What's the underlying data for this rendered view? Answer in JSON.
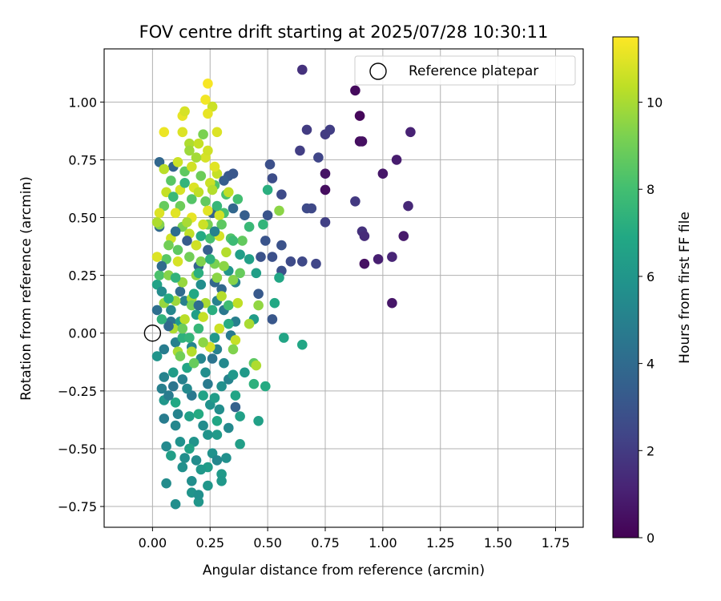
{
  "chart_data": {
    "type": "scatter",
    "title": "FOV centre drift starting at 2025/07/28 10:30:11",
    "xlabel": "Angular distance from reference (arcmin)",
    "ylabel": "Rotation from reference (arcmin)",
    "xlim": [
      -0.21,
      1.87
    ],
    "ylim": [
      -0.84,
      1.23
    ],
    "xticks": [
      "0.00",
      "0.25",
      "0.50",
      "0.75",
      "1.00",
      "1.25",
      "1.50",
      "1.75"
    ],
    "yticks": [
      "-0.75",
      "-0.50",
      "-0.25",
      "0.00",
      "0.25",
      "0.50",
      "0.75",
      "1.00"
    ],
    "grid": true,
    "legend": {
      "placement": "top-right",
      "entries": [
        "Reference platepar"
      ]
    },
    "reference_point": {
      "x": 0.0,
      "y": 0.0
    },
    "colorbar": {
      "label": "Hours from first FF file",
      "min": 0,
      "max": 11.5,
      "ticks": [
        "0",
        "2",
        "4",
        "6",
        "8",
        "10"
      ],
      "colormap": "viridis"
    },
    "points": [
      [
        0.65,
        1.14,
        1.6
      ],
      [
        0.88,
        1.05,
        0.3
      ],
      [
        0.9,
        0.94,
        0.2
      ],
      [
        0.67,
        0.88,
        2.0
      ],
      [
        0.77,
        0.88,
        2.1
      ],
      [
        0.75,
        0.86,
        2.0
      ],
      [
        0.9,
        0.83,
        0.4
      ],
      [
        0.91,
        0.83,
        0.5
      ],
      [
        1.12,
        0.87,
        1.1
      ],
      [
        0.64,
        0.79,
        2.1
      ],
      [
        0.72,
        0.76,
        2.4
      ],
      [
        1.06,
        0.75,
        0.9
      ],
      [
        0.51,
        0.73,
        2.8
      ],
      [
        0.75,
        0.69,
        0.6
      ],
      [
        1.0,
        0.69,
        0.7
      ],
      [
        0.52,
        0.67,
        2.7
      ],
      [
        0.75,
        0.62,
        0.4
      ],
      [
        0.56,
        0.6,
        2.6
      ],
      [
        0.88,
        0.57,
        1.9
      ],
      [
        1.11,
        0.55,
        1.3
      ],
      [
        0.67,
        0.54,
        2.6
      ],
      [
        0.69,
        0.54,
        2.5
      ],
      [
        0.5,
        0.51,
        3.0
      ],
      [
        0.75,
        0.48,
        2.2
      ],
      [
        0.91,
        0.44,
        1.6
      ],
      [
        0.92,
        0.42,
        1.4
      ],
      [
        1.09,
        0.42,
        0.8
      ],
      [
        0.49,
        0.4,
        3.0
      ],
      [
        0.56,
        0.38,
        2.9
      ],
      [
        0.47,
        0.33,
        2.9
      ],
      [
        0.52,
        0.33,
        2.8
      ],
      [
        0.98,
        0.32,
        1.0
      ],
      [
        1.04,
        0.33,
        1.2
      ],
      [
        0.6,
        0.31,
        2.6
      ],
      [
        0.65,
        0.31,
        2.5
      ],
      [
        0.71,
        0.3,
        2.4
      ],
      [
        0.92,
        0.3,
        0.5
      ],
      [
        0.56,
        0.27,
        2.8
      ],
      [
        1.04,
        0.13,
        0.7
      ],
      [
        0.52,
        0.06,
        3.1
      ],
      [
        0.03,
        0.74,
        3.8
      ],
      [
        0.09,
        0.72,
        3.7
      ],
      [
        0.03,
        0.46,
        3.9
      ],
      [
        0.33,
        0.68,
        3.2
      ],
      [
        0.35,
        0.69,
        3.1
      ],
      [
        0.26,
        0.52,
        3.6
      ],
      [
        0.4,
        0.51,
        3.4
      ],
      [
        0.24,
        0.36,
        3.5
      ],
      [
        0.2,
        0.29,
        3.7
      ],
      [
        0.12,
        0.18,
        4.0
      ],
      [
        0.02,
        0.1,
        4.2
      ],
      [
        0.08,
        0.05,
        4.4
      ],
      [
        0.27,
        0.22,
        3.8
      ],
      [
        0.3,
        0.19,
        3.9
      ],
      [
        0.46,
        0.17,
        3.2
      ],
      [
        0.36,
        -0.32,
        3.6
      ],
      [
        0.04,
        -0.24,
        4.9
      ],
      [
        0.09,
        -0.23,
        4.5
      ],
      [
        0.05,
        -0.37,
        4.8
      ],
      [
        0.48,
        0.47,
        7.5
      ],
      [
        0.42,
        0.46,
        7.7
      ],
      [
        0.55,
        0.53,
        9.5
      ],
      [
        0.5,
        0.62,
        7.2
      ],
      [
        0.55,
        0.24,
        6.8
      ],
      [
        0.53,
        0.13,
        6.9
      ],
      [
        0.46,
        0.12,
        9.6
      ],
      [
        0.57,
        -0.02,
        6.7
      ],
      [
        0.65,
        -0.05,
        6.8
      ],
      [
        0.49,
        -0.23,
        7.0
      ],
      [
        0.44,
        -0.22,
        7.3
      ],
      [
        0.46,
        -0.38,
        6.5
      ],
      [
        0.38,
        -0.36,
        6.5
      ],
      [
        0.38,
        -0.48,
        6.4
      ],
      [
        0.44,
        -0.13,
        8.6
      ],
      [
        0.45,
        -0.14,
        10.1
      ],
      [
        0.44,
        0.06,
        6.3
      ],
      [
        0.42,
        0.04,
        10.0
      ],
      [
        0.45,
        0.26,
        6.4
      ],
      [
        0.42,
        0.32,
        6.5
      ],
      [
        0.02,
        0.21,
        6.6
      ],
      [
        0.06,
        -0.65,
        5.5
      ],
      [
        0.1,
        -0.74,
        5.6
      ],
      [
        0.17,
        -0.64,
        5.6
      ],
      [
        0.17,
        -0.69,
        5.9
      ],
      [
        0.2,
        -0.73,
        6.0
      ],
      [
        0.2,
        -0.7,
        5.7
      ],
      [
        0.24,
        -0.66,
        6.0
      ],
      [
        0.24,
        -0.58,
        6.3
      ],
      [
        0.3,
        -0.61,
        6.2
      ],
      [
        0.3,
        -0.64,
        6.1
      ],
      [
        0.32,
        -0.54,
        5.7
      ],
      [
        0.14,
        -0.54,
        5.6
      ],
      [
        0.08,
        -0.53,
        6.4
      ],
      [
        0.26,
        -0.52,
        5.8
      ],
      [
        0.06,
        -0.49,
        5.4
      ],
      [
        0.12,
        -0.47,
        5.8
      ],
      [
        0.18,
        -0.47,
        5.9
      ],
      [
        0.28,
        -0.44,
        6.2
      ],
      [
        0.1,
        -0.4,
        5.3
      ],
      [
        0.22,
        -0.4,
        5.5
      ],
      [
        0.16,
        -0.36,
        6.5
      ],
      [
        0.25,
        -0.31,
        5.8
      ],
      [
        0.05,
        -0.19,
        5.1
      ],
      [
        0.13,
        -0.2,
        5.0
      ],
      [
        0.15,
        -0.15,
        6.8
      ],
      [
        0.21,
        -0.11,
        5.2
      ],
      [
        0.23,
        -0.17,
        5.6
      ],
      [
        0.31,
        -0.13,
        5.4
      ],
      [
        0.33,
        -0.2,
        5.1
      ],
      [
        0.35,
        -0.18,
        6.1
      ],
      [
        0.05,
        -0.07,
        4.8
      ],
      [
        0.1,
        -0.04,
        5.0
      ],
      [
        0.17,
        -0.06,
        5.2
      ],
      [
        0.28,
        -0.07,
        5.0
      ],
      [
        0.34,
        -0.01,
        4.7
      ],
      [
        0.36,
        0.05,
        4.9
      ],
      [
        0.31,
        0.1,
        4.6
      ],
      [
        0.14,
        0.14,
        4.9
      ],
      [
        0.28,
        0.14,
        5.0
      ],
      [
        0.36,
        0.22,
        5.1
      ],
      [
        0.04,
        0.18,
        5.5
      ],
      [
        0.21,
        0.21,
        5.6
      ],
      [
        0.33,
        0.27,
        6.0
      ],
      [
        0.38,
        0.34,
        6.4
      ],
      [
        0.08,
        0.1,
        5.3
      ],
      [
        0.12,
        0.05,
        6.2
      ],
      [
        0.19,
        0.08,
        6.4
      ],
      [
        0.27,
        -0.02,
        6.1
      ],
      [
        0.22,
        -0.27,
        6.6
      ],
      [
        0.1,
        -0.3,
        6.9
      ],
      [
        0.05,
        -0.29,
        6.0
      ],
      [
        0.2,
        -0.35,
        7.0
      ],
      [
        0.28,
        -0.38,
        6.8
      ],
      [
        0.16,
        -0.5,
        6.6
      ],
      [
        0.3,
        -0.23,
        5.7
      ],
      [
        0.02,
        -0.1,
        5.9
      ],
      [
        0.13,
        -0.02,
        7.3
      ],
      [
        0.2,
        0.02,
        7.6
      ],
      [
        0.33,
        0.12,
        7.9
      ],
      [
        0.03,
        0.25,
        8.2
      ],
      [
        0.06,
        0.32,
        8.5
      ],
      [
        0.11,
        0.36,
        8.6
      ],
      [
        0.19,
        0.38,
        8.4
      ],
      [
        0.25,
        0.41,
        8.1
      ],
      [
        0.34,
        0.41,
        8.3
      ],
      [
        0.39,
        0.4,
        8.7
      ],
      [
        0.05,
        0.55,
        8.8
      ],
      [
        0.12,
        0.55,
        8.9
      ],
      [
        0.17,
        0.58,
        8.4
      ],
      [
        0.23,
        0.57,
        8.7
      ],
      [
        0.32,
        0.6,
        8.2
      ],
      [
        0.37,
        0.58,
        8.0
      ],
      [
        0.08,
        0.66,
        8.5
      ],
      [
        0.14,
        0.7,
        8.6
      ],
      [
        0.21,
        0.68,
        8.9
      ],
      [
        0.27,
        0.64,
        8.3
      ],
      [
        0.31,
        0.52,
        8.1
      ],
      [
        0.24,
        0.47,
        9.1
      ],
      [
        0.13,
        0.46,
        9.2
      ],
      [
        0.03,
        0.47,
        9.4
      ],
      [
        0.16,
        0.33,
        9.0
      ],
      [
        0.21,
        0.31,
        9.3
      ],
      [
        0.27,
        0.3,
        9.2
      ],
      [
        0.31,
        0.29,
        9.5
      ],
      [
        0.07,
        0.25,
        9.4
      ],
      [
        0.13,
        0.22,
        9.7
      ],
      [
        0.19,
        0.25,
        9.6
      ],
      [
        0.28,
        0.24,
        9.5
      ],
      [
        0.35,
        0.23,
        9.4
      ],
      [
        0.05,
        0.13,
        9.7
      ],
      [
        0.1,
        0.14,
        9.8
      ],
      [
        0.17,
        0.15,
        9.9
      ],
      [
        0.23,
        0.13,
        10.0
      ],
      [
        0.3,
        0.16,
        10.2
      ],
      [
        0.37,
        0.13,
        10.4
      ],
      [
        0.09,
        0.02,
        10.1
      ],
      [
        0.14,
        0.06,
        10.3
      ],
      [
        0.22,
        0.07,
        10.5
      ],
      [
        0.29,
        0.02,
        10.6
      ],
      [
        0.36,
        -0.03,
        10.5
      ],
      [
        0.11,
        -0.08,
        10.0
      ],
      [
        0.17,
        -0.08,
        10.2
      ],
      [
        0.25,
        -0.06,
        10.7
      ],
      [
        0.11,
        0.31,
        10.8
      ],
      [
        0.02,
        0.33,
        10.9
      ],
      [
        0.08,
        0.41,
        10.7
      ],
      [
        0.16,
        0.43,
        10.4
      ],
      [
        0.22,
        0.47,
        10.6
      ],
      [
        0.29,
        0.42,
        10.8
      ],
      [
        0.03,
        0.52,
        10.9
      ],
      [
        0.1,
        0.52,
        11.0
      ],
      [
        0.17,
        0.5,
        11.1
      ],
      [
        0.24,
        0.53,
        11.0
      ],
      [
        0.29,
        0.51,
        10.7
      ],
      [
        0.06,
        0.61,
        10.5
      ],
      [
        0.12,
        0.62,
        10.8
      ],
      [
        0.18,
        0.63,
        10.9
      ],
      [
        0.25,
        0.65,
        10.6
      ],
      [
        0.33,
        0.61,
        10.4
      ],
      [
        0.05,
        0.71,
        10.3
      ],
      [
        0.11,
        0.74,
        10.6
      ],
      [
        0.17,
        0.72,
        10.7
      ],
      [
        0.23,
        0.76,
        10.8
      ],
      [
        0.28,
        0.69,
        10.5
      ],
      [
        0.05,
        0.87,
        11.2
      ],
      [
        0.13,
        0.87,
        10.9
      ],
      [
        0.13,
        0.94,
        11.1
      ],
      [
        0.14,
        0.96,
        10.8
      ],
      [
        0.23,
        1.01,
        11.3
      ],
      [
        0.24,
        1.08,
        11.4
      ],
      [
        0.26,
        0.98,
        10.6
      ],
      [
        0.28,
        0.87,
        10.9
      ],
      [
        0.24,
        0.95,
        11.1
      ],
      [
        0.22,
        0.86,
        9.2
      ],
      [
        0.16,
        0.82,
        10.1
      ],
      [
        0.2,
        0.82,
        10.5
      ],
      [
        0.24,
        0.79,
        10.7
      ],
      [
        0.16,
        0.79,
        9.8
      ],
      [
        0.19,
        0.76,
        9.9
      ],
      [
        0.27,
        0.72,
        11.0
      ],
      [
        0.26,
        0.62,
        10.2
      ],
      [
        0.2,
        0.61,
        10.4
      ],
      [
        0.15,
        0.48,
        10.0
      ],
      [
        0.07,
        0.38,
        9.0
      ],
      [
        0.02,
        0.48,
        10.1
      ],
      [
        0.19,
        0.38,
        10.7
      ],
      [
        0.32,
        0.35,
        10.2
      ],
      [
        0.3,
        0.47,
        8.6
      ],
      [
        0.38,
        0.26,
        8.8
      ],
      [
        0.13,
        0.02,
        8.9
      ],
      [
        0.17,
        0.12,
        9.1
      ],
      [
        0.22,
        -0.04,
        9.5
      ],
      [
        0.18,
        -0.13,
        8.8
      ],
      [
        0.12,
        -0.1,
        9.0
      ],
      [
        0.35,
        -0.07,
        9.3
      ],
      [
        0.2,
        0.26,
        7.2
      ],
      [
        0.1,
        0.24,
        7.4
      ],
      [
        0.07,
        0.15,
        7.0
      ],
      [
        0.25,
        0.32,
        7.3
      ],
      [
        0.35,
        0.4,
        7.8
      ],
      [
        0.28,
        0.55,
        7.6
      ],
      [
        0.09,
        0.59,
        7.7
      ],
      [
        0.14,
        0.65,
        7.5
      ],
      [
        0.21,
        0.42,
        7.0
      ],
      [
        0.26,
        0.1,
        7.2
      ],
      [
        0.16,
        -0.02,
        7.5
      ],
      [
        0.33,
        0.04,
        7.1
      ],
      [
        0.09,
        -0.17,
        6.3
      ],
      [
        0.29,
        -0.33,
        5.6
      ],
      [
        0.24,
        -0.44,
        5.9
      ],
      [
        0.19,
        -0.55,
        5.5
      ],
      [
        0.13,
        -0.58,
        5.7
      ],
      [
        0.28,
        -0.55,
        5.3
      ],
      [
        0.11,
        -0.35,
        5.1
      ],
      [
        0.07,
        -0.27,
        4.8
      ],
      [
        0.17,
        -0.27,
        4.6
      ],
      [
        0.24,
        -0.22,
        4.7
      ],
      [
        0.15,
        -0.24,
        5.4
      ],
      [
        0.26,
        -0.11,
        4.4
      ],
      [
        0.07,
        0.03,
        3.9
      ],
      [
        0.2,
        0.12,
        4.1
      ],
      [
        0.04,
        0.29,
        4.0
      ],
      [
        0.15,
        0.4,
        3.3
      ],
      [
        0.1,
        0.44,
        4.1
      ],
      [
        0.35,
        0.54,
        3.8
      ],
      [
        0.31,
        0.66,
        3.4
      ],
      [
        0.27,
        0.44,
        5.0
      ],
      [
        0.18,
        0.17,
        6.9
      ],
      [
        0.04,
        0.06,
        7.4
      ],
      [
        0.27,
        -0.28,
        6.3
      ],
      [
        0.21,
        -0.59,
        6.1
      ],
      [
        0.33,
        -0.41,
        5.4
      ],
      [
        0.36,
        -0.27,
        6.7
      ],
      [
        0.4,
        -0.17,
        6.2
      ]
    ]
  }
}
